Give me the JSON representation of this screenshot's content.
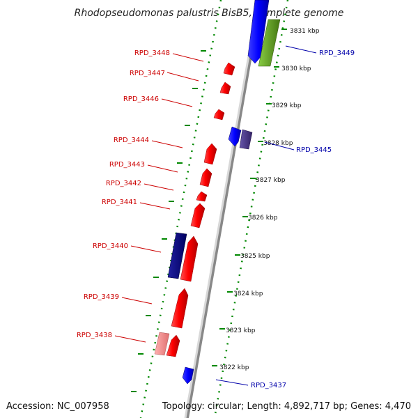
{
  "title": "Rhodopseudomonas palustris BisB5, complete genome",
  "footer": {
    "accession": "Accession: NC_007958",
    "topology": "Topology: circular; Length: 4,892,717 bp; Genes: 4,470"
  },
  "colors": {
    "forward": "#ff0000",
    "reverse": "#0000ff",
    "navy": "#000080",
    "olive": "#66aa22",
    "slate": "#443388",
    "pink": "#ff8888",
    "tick": "#008800",
    "label_forward": "#cc0000",
    "label_reverse": "#0000aa"
  },
  "kbp_labels": [
    "3831 kbp",
    "3830 kbp",
    "3829 kbp",
    "3828 kbp",
    "3827 kbp",
    "3826 kbp",
    "3825 kbp",
    "3824 kbp",
    "3823 kbp",
    "3822 kbp"
  ],
  "genes": [
    {
      "name": "RPD_3448",
      "strand": "forward"
    },
    {
      "name": "RPD_3447",
      "strand": "forward"
    },
    {
      "name": "RPD_3446",
      "strand": "forward"
    },
    {
      "name": "RPD_3444",
      "strand": "forward"
    },
    {
      "name": "RPD_3443",
      "strand": "forward"
    },
    {
      "name": "RPD_3442",
      "strand": "forward"
    },
    {
      "name": "RPD_3441",
      "strand": "forward"
    },
    {
      "name": "RPD_3440",
      "strand": "forward"
    },
    {
      "name": "RPD_3439",
      "strand": "forward"
    },
    {
      "name": "RPD_3438",
      "strand": "forward"
    },
    {
      "name": "RPD_3449",
      "strand": "reverse"
    },
    {
      "name": "RPD_3445",
      "strand": "reverse"
    },
    {
      "name": "RPD_3437",
      "strand": "reverse"
    }
  ]
}
